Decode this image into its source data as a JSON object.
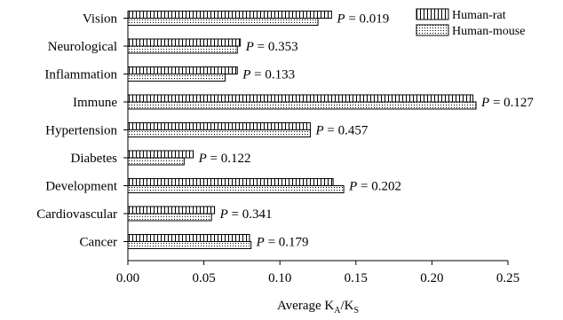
{
  "chart_data": {
    "type": "bar",
    "orientation": "horizontal",
    "categories": [
      "Vision",
      "Neurological",
      "Inflammation",
      "Immune",
      "Hypertension",
      "Diabetes",
      "Development",
      "Cardiovascular",
      "Cancer"
    ],
    "series": [
      {
        "name": "Human-rat",
        "pattern": "vertical-stripes",
        "values": [
          0.134,
          0.074,
          0.072,
          0.227,
          0.12,
          0.043,
          0.135,
          0.057,
          0.08
        ]
      },
      {
        "name": "Human-mouse",
        "pattern": "dots",
        "values": [
          0.125,
          0.072,
          0.064,
          0.229,
          0.12,
          0.037,
          0.142,
          0.055,
          0.081
        ]
      }
    ],
    "annotations": [
      "P = 0.019",
      "P = 0.353",
      "P = 0.133",
      "P = 0.127",
      "P = 0.457",
      "P = 0.122",
      "P = 0.202",
      "P = 0.341",
      "P = 0.179"
    ],
    "xlabel": {
      "main": "Average K",
      "sub1": "A",
      "sep": "/K",
      "sub2": "S"
    },
    "xlim": [
      0,
      0.25
    ],
    "xticks": [
      0,
      0.05,
      0.1,
      0.15,
      0.2,
      0.25
    ],
    "xtick_labels": [
      "0.00",
      "0.05",
      "0.10",
      "0.15",
      "0.20",
      "0.25"
    ],
    "grid": false,
    "legend_position": "top-right"
  }
}
